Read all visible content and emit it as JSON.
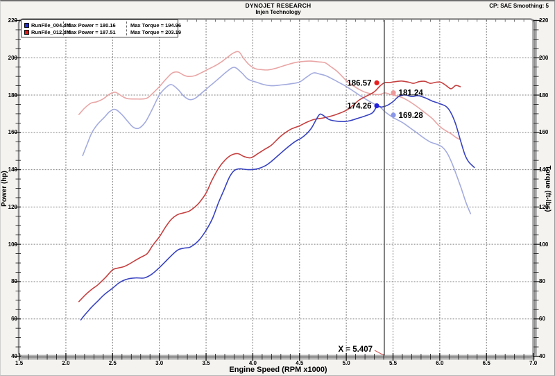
{
  "header": {
    "title": "DYNOJET RESEARCH",
    "subtitle": "Injen Technology",
    "right": "CP: SAE  Smoothing: 5"
  },
  "legend": {
    "rows": [
      {
        "swatch_color": "#2230cf",
        "file": "RunFile_004.drf",
        "power": "Max Power = 180.16",
        "torque": "Max Torque = 194.96"
      },
      {
        "swatch_color": "#e01818",
        "file": "RunFile_012.drf",
        "power": "Max Power = 187.51",
        "torque": "Max Torque = 203.19"
      }
    ]
  },
  "axes": {
    "x": {
      "label": "Engine Speed (RPM x1000)",
      "tick_labels": [
        "1.5",
        "2.0",
        "2.5",
        "3.0",
        "3.5",
        "4.0",
        "4.5",
        "5.0",
        "5.5",
        "6.0",
        "6.5",
        "7.0"
      ]
    },
    "y_left": {
      "label": "Power (hp)",
      "tick_labels": [
        "40",
        "60",
        "80",
        "100",
        "120",
        "140",
        "160",
        "180",
        "200",
        "220"
      ]
    },
    "y_right": {
      "label": "Torque (ft-lbs)",
      "tick_labels": [
        "40",
        "60",
        "80",
        "100",
        "120",
        "140",
        "160",
        "180",
        "200",
        "220"
      ]
    }
  },
  "cursor": {
    "rpm": 5.407,
    "label": "X = 5.407"
  },
  "markers": [
    {
      "label": "186.57",
      "value": 186.57,
      "dot_rpm": 5.326,
      "side": "left",
      "dot_color": "#e81f1f"
    },
    {
      "label": "181.24",
      "value": 181.24,
      "dot_rpm": 5.504,
      "side": "right",
      "dot_color": "#ef9a9a"
    },
    {
      "label": "174.26",
      "value": 174.26,
      "dot_rpm": 5.326,
      "side": "left",
      "dot_color": "#2020dd"
    },
    {
      "label": "169.28",
      "value": 169.28,
      "dot_rpm": 5.504,
      "side": "right",
      "dot_color": "#8b97e8"
    }
  ],
  "style": {
    "grid_color": "#7f7f7f",
    "frame_color": "#8e8e8e",
    "band_color": "#b5b5b5",
    "tick_color": "#111111",
    "cursor_color": "#4a4a4a",
    "pointer_color": "#d06060",
    "plot_bg": "#ffffff"
  },
  "chart_data": {
    "type": "line",
    "title": "",
    "xlabel": "Engine Speed (RPM x1000)",
    "ylabel_left": "Power (hp)",
    "ylabel_right": "Torque (ft-lbs)",
    "xlim": [
      1.5,
      7.0
    ],
    "ylim": [
      40,
      220
    ],
    "x_major": 0.5,
    "x_minor": 0.1,
    "y_major": 20,
    "y_minor": 5,
    "grid": true,
    "legend_position": "top-left",
    "cursor_x": 5.407,
    "cursor_readouts": {
      "power_red": 186.57,
      "torque_red": 181.24,
      "power_blue": 174.26,
      "torque_blue": 169.28
    },
    "max_values": {
      "power_blue": 180.16,
      "torque_blue": 194.96,
      "power_red": 187.51,
      "torque_red": 203.19
    },
    "series": [
      {
        "name": "RunFile_004.drf Torque",
        "id": "torque_blue",
        "axis": "right",
        "color": "#a3abde",
        "points": [
          [
            2.18,
            147.5
          ],
          [
            2.23,
            154
          ],
          [
            2.28,
            160
          ],
          [
            2.34,
            164.4
          ],
          [
            2.41,
            168
          ],
          [
            2.47,
            171.2
          ],
          [
            2.53,
            172.3
          ],
          [
            2.6,
            169.5
          ],
          [
            2.66,
            166
          ],
          [
            2.72,
            162.8
          ],
          [
            2.78,
            162.2
          ],
          [
            2.85,
            165.5
          ],
          [
            2.92,
            172
          ],
          [
            3.0,
            180
          ],
          [
            3.07,
            184
          ],
          [
            3.13,
            185.6
          ],
          [
            3.2,
            183
          ],
          [
            3.26,
            179.5
          ],
          [
            3.32,
            177.6
          ],
          [
            3.38,
            178.2
          ],
          [
            3.45,
            181
          ],
          [
            3.52,
            184
          ],
          [
            3.58,
            186.5
          ],
          [
            3.65,
            189.5
          ],
          [
            3.72,
            192.5
          ],
          [
            3.8,
            194.9
          ],
          [
            3.88,
            192
          ],
          [
            3.95,
            188.5
          ],
          [
            4.05,
            186.7
          ],
          [
            4.12,
            185.6
          ],
          [
            4.2,
            185
          ],
          [
            4.3,
            185.4
          ],
          [
            4.4,
            186
          ],
          [
            4.5,
            187
          ],
          [
            4.58,
            189.8
          ],
          [
            4.65,
            191.9
          ],
          [
            4.72,
            191.2
          ],
          [
            4.78,
            190.4
          ],
          [
            4.85,
            188.7
          ],
          [
            4.92,
            186.8
          ],
          [
            5.0,
            184.6
          ],
          [
            5.08,
            182
          ],
          [
            5.16,
            179.3
          ],
          [
            5.26,
            176.3
          ],
          [
            5.36,
            173.6
          ],
          [
            5.42,
            170.8
          ],
          [
            5.5,
            168
          ],
          [
            5.6,
            165.3
          ],
          [
            5.68,
            162.5
          ],
          [
            5.76,
            159.6
          ],
          [
            5.83,
            157
          ],
          [
            5.9,
            154.8
          ],
          [
            5.97,
            153.6
          ],
          [
            6.03,
            152
          ],
          [
            6.08,
            148.8
          ],
          [
            6.13,
            143.6
          ],
          [
            6.18,
            137
          ],
          [
            6.23,
            130
          ],
          [
            6.28,
            122.5
          ],
          [
            6.33,
            116.4
          ]
        ]
      },
      {
        "name": "RunFile_012.drf Torque",
        "id": "torque_red",
        "axis": "right",
        "color": "#e9a5a5",
        "points": [
          [
            2.14,
            169.6
          ],
          [
            2.2,
            173
          ],
          [
            2.27,
            175.7
          ],
          [
            2.33,
            176.4
          ],
          [
            2.4,
            178
          ],
          [
            2.47,
            180.6
          ],
          [
            2.53,
            181.5
          ],
          [
            2.6,
            179.4
          ],
          [
            2.66,
            178.1
          ],
          [
            2.75,
            177.9
          ],
          [
            2.86,
            178.2
          ],
          [
            2.93,
            181
          ],
          [
            3.0,
            184.5
          ],
          [
            3.07,
            188.5
          ],
          [
            3.14,
            191.9
          ],
          [
            3.2,
            192.3
          ],
          [
            3.26,
            190.7
          ],
          [
            3.31,
            190
          ],
          [
            3.38,
            190.4
          ],
          [
            3.45,
            192
          ],
          [
            3.52,
            193.8
          ],
          [
            3.6,
            195.8
          ],
          [
            3.67,
            198
          ],
          [
            3.73,
            200.3
          ],
          [
            3.79,
            202.5
          ],
          [
            3.85,
            203.2
          ],
          [
            3.9,
            199.8
          ],
          [
            3.96,
            196.3
          ],
          [
            4.02,
            194.3
          ],
          [
            4.08,
            193.7
          ],
          [
            4.16,
            193.5
          ],
          [
            4.25,
            194.4
          ],
          [
            4.35,
            196
          ],
          [
            4.45,
            197.4
          ],
          [
            4.55,
            198.1
          ],
          [
            4.62,
            198.2
          ],
          [
            4.7,
            197.8
          ],
          [
            4.77,
            197.4
          ],
          [
            4.83,
            195.4
          ],
          [
            4.9,
            192.8
          ],
          [
            4.96,
            189.8
          ],
          [
            5.02,
            186.8
          ],
          [
            5.08,
            184.8
          ],
          [
            5.14,
            183
          ],
          [
            5.21,
            181.4
          ],
          [
            5.29,
            180.5
          ],
          [
            5.36,
            180.3
          ],
          [
            5.41,
            181.2
          ],
          [
            5.47,
            180.4
          ],
          [
            5.55,
            179.4
          ],
          [
            5.61,
            178.4
          ],
          [
            5.68,
            176.4
          ],
          [
            5.76,
            173.7
          ],
          [
            5.84,
            170.6
          ],
          [
            5.92,
            167.4
          ],
          [
            6.0,
            163.2
          ],
          [
            6.06,
            161
          ],
          [
            6.12,
            159.3
          ],
          [
            6.17,
            157.4
          ],
          [
            6.21,
            156.3
          ]
        ]
      },
      {
        "name": "RunFile_012.drf Power",
        "id": "power_red",
        "axis": "left",
        "color": "#c53f3f",
        "points": [
          [
            2.14,
            69.3
          ],
          [
            2.21,
            73
          ],
          [
            2.28,
            76
          ],
          [
            2.34,
            78.2
          ],
          [
            2.42,
            82
          ],
          [
            2.5,
            86.3
          ],
          [
            2.56,
            87.3
          ],
          [
            2.62,
            88
          ],
          [
            2.68,
            89.5
          ],
          [
            2.74,
            91.3
          ],
          [
            2.8,
            93
          ],
          [
            2.87,
            95
          ],
          [
            2.93,
            99.5
          ],
          [
            3.0,
            104
          ],
          [
            3.07,
            109.5
          ],
          [
            3.13,
            113.5
          ],
          [
            3.2,
            116
          ],
          [
            3.27,
            117
          ],
          [
            3.32,
            117.8
          ],
          [
            3.38,
            120
          ],
          [
            3.43,
            122.5
          ],
          [
            3.5,
            127.5
          ],
          [
            3.56,
            134
          ],
          [
            3.63,
            140.5
          ],
          [
            3.7,
            145
          ],
          [
            3.77,
            147.8
          ],
          [
            3.84,
            148.6
          ],
          [
            3.91,
            147
          ],
          [
            3.98,
            146.4
          ],
          [
            4.06,
            148.8
          ],
          [
            4.13,
            151
          ],
          [
            4.2,
            153.2
          ],
          [
            4.3,
            158
          ],
          [
            4.4,
            161.5
          ],
          [
            4.5,
            163.5
          ],
          [
            4.58,
            165.5
          ],
          [
            4.66,
            167
          ],
          [
            4.76,
            167.8
          ],
          [
            4.88,
            169.4
          ],
          [
            5.0,
            171.8
          ],
          [
            5.07,
            174.4
          ],
          [
            5.14,
            177.4
          ],
          [
            5.23,
            179.8
          ],
          [
            5.3,
            181.8
          ],
          [
            5.36,
            184.8
          ],
          [
            5.41,
            186.6
          ],
          [
            5.47,
            186.8
          ],
          [
            5.54,
            187.3
          ],
          [
            5.6,
            187.5
          ],
          [
            5.67,
            186.9
          ],
          [
            5.72,
            186.3
          ],
          [
            5.78,
            187.2
          ],
          [
            5.84,
            187.4
          ],
          [
            5.9,
            186.3
          ],
          [
            5.96,
            186.9
          ],
          [
            6.01,
            186.9
          ],
          [
            6.06,
            185.4
          ],
          [
            6.12,
            183.4
          ],
          [
            6.17,
            185.1
          ],
          [
            6.22,
            184.5
          ]
        ]
      },
      {
        "name": "RunFile_004.drf Power",
        "id": "power_blue",
        "axis": "left",
        "color": "#3742c0",
        "points": [
          [
            2.16,
            59.5
          ],
          [
            2.2,
            62
          ],
          [
            2.27,
            66
          ],
          [
            2.34,
            69.5
          ],
          [
            2.41,
            73
          ],
          [
            2.5,
            76.5
          ],
          [
            2.56,
            79
          ],
          [
            2.61,
            80.5
          ],
          [
            2.67,
            81.5
          ],
          [
            2.75,
            82
          ],
          [
            2.84,
            82
          ],
          [
            2.92,
            84
          ],
          [
            3.0,
            87.5
          ],
          [
            3.08,
            91.5
          ],
          [
            3.13,
            94
          ],
          [
            3.2,
            97
          ],
          [
            3.27,
            98
          ],
          [
            3.33,
            98.5
          ],
          [
            3.42,
            102
          ],
          [
            3.5,
            107.5
          ],
          [
            3.57,
            114
          ],
          [
            3.63,
            122
          ],
          [
            3.69,
            129
          ],
          [
            3.75,
            136
          ],
          [
            3.8,
            139.5
          ],
          [
            3.86,
            140.5
          ],
          [
            3.95,
            140
          ],
          [
            4.05,
            140.5
          ],
          [
            4.13,
            142
          ],
          [
            4.2,
            144.5
          ],
          [
            4.28,
            148
          ],
          [
            4.36,
            151.5
          ],
          [
            4.45,
            155
          ],
          [
            4.52,
            157
          ],
          [
            4.58,
            159.5
          ],
          [
            4.63,
            162.5
          ],
          [
            4.68,
            167
          ],
          [
            4.72,
            169.8
          ],
          [
            4.77,
            168.5
          ],
          [
            4.82,
            166.8
          ],
          [
            4.9,
            166
          ],
          [
            4.98,
            165.8
          ],
          [
            5.05,
            166.4
          ],
          [
            5.12,
            167.5
          ],
          [
            5.2,
            168.8
          ],
          [
            5.28,
            170.5
          ],
          [
            5.33,
            173.9
          ],
          [
            5.38,
            173.6
          ],
          [
            5.44,
            174.5
          ],
          [
            5.5,
            176.5
          ],
          [
            5.56,
            179.2
          ],
          [
            5.63,
            180.1
          ],
          [
            5.7,
            179.2
          ],
          [
            5.77,
            179.7
          ],
          [
            5.85,
            178.4
          ],
          [
            5.92,
            176.8
          ],
          [
            6.0,
            175.4
          ],
          [
            6.07,
            173.8
          ],
          [
            6.12,
            170.5
          ],
          [
            6.17,
            164.5
          ],
          [
            6.22,
            156
          ],
          [
            6.27,
            148
          ],
          [
            6.31,
            144.2
          ],
          [
            6.37,
            141.2
          ]
        ]
      }
    ]
  }
}
